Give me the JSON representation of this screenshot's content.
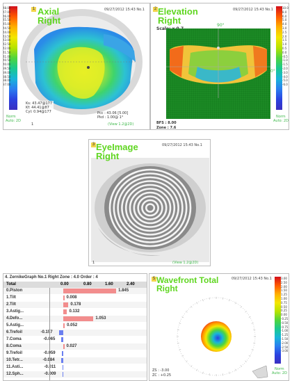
{
  "axial": {
    "badge": "1",
    "title": "Axial",
    "subtitle": "Right",
    "stamp": "09/27/2012 15:43 No.1",
    "legend_norm": "Norm",
    "legend_auto": "Auto: 2D",
    "scale_labels": [
      "48.00",
      "47.00",
      "46.00",
      "45.50",
      "45.00",
      "44.50",
      "44.00",
      "43.50",
      "43.00",
      "42.50",
      "42.00",
      "41.50",
      "41.00",
      "40.50",
      "40.00",
      "39.50",
      "39.00",
      "38.50",
      "38.00",
      "37.00"
    ],
    "info_left": [
      "Ks: 43.47@177",
      "Kf: 44.41@87",
      "Cyl: 0.94@177"
    ],
    "info_right": [
      "Pcc : 43.06 [5.00]",
      "Pkd : 1.00@ 1°"
    ],
    "view_link": "(View 1.2@2D)",
    "marker": "1"
  },
  "elevation": {
    "badge": "2",
    "title": "Elevation",
    "subtitle": "Right",
    "stamp": "09/27/2012 15:43 No.1",
    "scale_text": "Scale: x 0.7",
    "angle_top": "90°",
    "angle_right": "0°",
    "bfs": "BFS : 8.00",
    "zone": "Zone : 7.6",
    "legend_norm": "Norm",
    "legend_auto": "Auto: 2D",
    "scale_labels": [
      "10.0",
      "8.0",
      "6.0",
      "5.0",
      "4.0",
      "3.0",
      "2.5",
      "2.0",
      "1.5",
      "1.0",
      "0.5",
      "0.0",
      "-0.5",
      "-1.0",
      "-1.5",
      "-2.0",
      "-3.0",
      "-4.0",
      "-5.0",
      "-6.0"
    ]
  },
  "eyeimage": {
    "badge": "3",
    "title": "EyeImage",
    "subtitle": "Right",
    "stamp": "09/27/2012 15:43 No.1",
    "view_link": "(View 1.2@2D)",
    "marker": "1"
  },
  "zernike": {
    "header": "4. ZernikeGraph No.1 Right Zone : 4.0 Order : 4",
    "total_label": "Total",
    "axis_ticks": [
      "0.00",
      "0.80",
      "1.60",
      "2.40"
    ],
    "rows": [
      {
        "label": "0.Piston",
        "value": 1.845,
        "text": "1.845"
      },
      {
        "label": "1.Tilt",
        "value": 0.008,
        "text": "0.008"
      },
      {
        "label": "2.Tilt",
        "value": 0.178,
        "text": "0.178"
      },
      {
        "label": "3.Astig...",
        "value": 0.132,
        "text": "0.132"
      },
      {
        "label": "4.Defo...",
        "value": 1.053,
        "text": "1.053"
      },
      {
        "label": "5.Astig...",
        "value": 0.052,
        "text": "0.052"
      },
      {
        "label": "6.Trefoil",
        "value": -0.157,
        "text": "-0.157"
      },
      {
        "label": "7.Coma",
        "value": -0.065,
        "text": "-0.065"
      },
      {
        "label": "8.Coma",
        "value": 0.027,
        "text": "0.027"
      },
      {
        "label": "9.Trefoil",
        "value": -0.059,
        "text": "-0.059"
      },
      {
        "label": "10.Tetr...",
        "value": -0.084,
        "text": "-0.084"
      },
      {
        "label": "11.Asti...",
        "value": -0.011,
        "text": "-0.011"
      },
      {
        "label": "12.Sph...",
        "value": -0.009,
        "text": "-0.009"
      }
    ]
  },
  "wavefront": {
    "badge": "5",
    "title": "Wavefront Total",
    "subtitle": "Right",
    "stamp": "09/27/2012 15:43 No.1",
    "zs": "ZS : -3.00",
    "zc": "ZC : +0.25",
    "legend_norm": "Norm",
    "legend_auto": "Auto: 2D",
    "scale_labels": [
      "3.00",
      "2.50",
      "2.00",
      "1.50",
      "1.25",
      "1.00",
      "0.75",
      "0.50",
      "0.25",
      "0.00",
      "-0.25",
      "-0.50",
      "-0.75",
      "-1.00",
      "-1.25",
      "-1.50",
      "-2.00",
      "-2.50",
      "-3.00"
    ]
  },
  "colors": {
    "title_green": "#5fd620",
    "positive_bar": "#f28d8d",
    "negative_bar": "#6a7ff0",
    "scale_top": "#c8102e",
    "scale_bottom": "#1a2fd8"
  }
}
